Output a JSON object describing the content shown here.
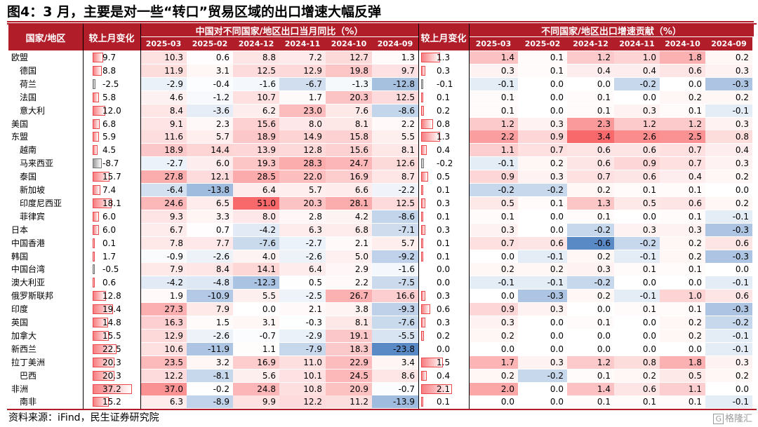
{
  "title": "图4：3 月，主要是对一些“转口”贸易区域的出口增速大幅反弹",
  "source": "资料来源：iFind，民生证券研究院",
  "watermark": "格隆汇",
  "headers": {
    "region": "国家/地区",
    "mom_left": "较上月变化",
    "mom_right": "较上月变化",
    "yoy_group": "中国对不同国家/地区出口当月同比（%）",
    "contrib_group": "不同国家/地区出口增速贡献（%）",
    "months": [
      "2025-03",
      "2025-02",
      "2024-12",
      "2024-11",
      "2024-10",
      "2024-09"
    ]
  },
  "colors": {
    "accent": "#b11e2a",
    "positive": "#f8696b",
    "negative": "#5a8ac6"
  },
  "rows": [
    {
      "name": "欧盟",
      "indent": false,
      "mom": 9.7,
      "yoy": [
        10.3,
        0.6,
        8.8,
        7.2,
        12.7,
        1.3
      ],
      "mom2": 1.3,
      "contrib": [
        1.4,
        0.1,
        1.2,
        1.0,
        1.8,
        0.2
      ]
    },
    {
      "name": "德国",
      "indent": true,
      "mom": 8.8,
      "yoy": [
        11.9,
        3.1,
        12.5,
        12.9,
        19.8,
        9.7
      ],
      "mom2": 0.3,
      "contrib": [
        0.3,
        0.1,
        0.4,
        0.4,
        0.6,
        0.3
      ]
    },
    {
      "name": "荷兰",
      "indent": true,
      "mom": -2.5,
      "yoy": [
        -2.9,
        -0.4,
        -1.6,
        -6.7,
        -1.3,
        -12.8
      ],
      "mom2": -0.1,
      "contrib": [
        -0.1,
        0.0,
        0.0,
        -0.2,
        0.0,
        -0.3
      ]
    },
    {
      "name": "法国",
      "indent": true,
      "mom": 5.8,
      "yoy": [
        4.6,
        -1.2,
        10.7,
        1.7,
        20.3,
        12.5
      ],
      "mom2": 0.1,
      "contrib": [
        0.1,
        0.0,
        0.1,
        0.0,
        0.2,
        0.2
      ]
    },
    {
      "name": "意大利",
      "indent": true,
      "mom": 12.0,
      "yoy": [
        8.4,
        -3.6,
        6.2,
        23.0,
        7.6,
        -8.6
      ],
      "mom2": 0.2,
      "contrib": [
        0.1,
        0.0,
        0.1,
        0.3,
        0.1,
        -0.1
      ]
    },
    {
      "name": "美国",
      "indent": false,
      "mom": 6.8,
      "yoy": [
        9.1,
        2.3,
        15.6,
        8.0,
        8.1,
        2.2
      ],
      "mom2": 0.8,
      "contrib": [
        1.2,
        0.3,
        2.3,
        1.2,
        1.2,
        0.3
      ]
    },
    {
      "name": "东盟",
      "indent": false,
      "mom": 5.9,
      "yoy": [
        11.6,
        5.7,
        18.9,
        14.9,
        15.8,
        5.5
      ],
      "mom2": 1.3,
      "contrib": [
        2.2,
        0.9,
        3.4,
        2.6,
        2.5,
        0.8
      ]
    },
    {
      "name": "越南",
      "indent": true,
      "mom": 4.5,
      "yoy": [
        18.9,
        14.4,
        13.9,
        12.8,
        15.6,
        8.1
      ],
      "mom2": 0.4,
      "contrib": [
        1.1,
        0.7,
        0.6,
        0.6,
        0.7,
        0.4
      ]
    },
    {
      "name": "马来西亚",
      "indent": true,
      "mom": -8.7,
      "yoy": [
        -2.7,
        6.0,
        19.3,
        28.3,
        24.7,
        12.6
      ],
      "mom2": -0.2,
      "contrib": [
        -0.1,
        0.2,
        0.6,
        0.9,
        0.7,
        0.3
      ]
    },
    {
      "name": "泰国",
      "indent": true,
      "mom": 15.7,
      "yoy": [
        27.8,
        12.1,
        28.5,
        22.0,
        16.9,
        8.7
      ],
      "mom2": 0.5,
      "contrib": [
        0.9,
        0.3,
        0.7,
        0.6,
        0.4,
        0.2
      ]
    },
    {
      "name": "新加坡",
      "indent": true,
      "mom": 7.4,
      "yoy": [
        -6.4,
        -13.8,
        6.4,
        5.7,
        6.6,
        -2.2
      ],
      "mom2": 0.1,
      "contrib": [
        -0.2,
        -0.2,
        0.2,
        0.1,
        0.1,
        0.0
      ]
    },
    {
      "name": "印度尼西亚",
      "indent": true,
      "mom": 18.1,
      "yoy": [
        24.6,
        6.5,
        51.0,
        20.3,
        28.1,
        12.5
      ],
      "mom2": 0.3,
      "contrib": [
        0.5,
        0.1,
        1.3,
        0.5,
        0.6,
        0.2
      ]
    },
    {
      "name": "菲律宾",
      "indent": true,
      "mom": 6.0,
      "yoy": [
        9.3,
        3.3,
        8.0,
        2.8,
        4.2,
        -8.6
      ],
      "mom2": 0.1,
      "contrib": [
        0.1,
        0.0,
        0.1,
        0.0,
        0.1,
        -0.1
      ]
    },
    {
      "name": "日本",
      "indent": false,
      "mom": 6.0,
      "yoy": [
        6.7,
        0.7,
        -4.2,
        6.3,
        6.8,
        -7.1
      ],
      "mom2": 0.3,
      "contrib": [
        0.3,
        0.0,
        -0.2,
        0.3,
        0.3,
        -0.3
      ]
    },
    {
      "name": "中国香港",
      "indent": false,
      "mom": 0.1,
      "yoy": [
        7.8,
        7.7,
        -7.6,
        -2.7,
        2.1,
        5.7
      ],
      "mom2": 0.1,
      "contrib": [
        0.7,
        0.6,
        -0.6,
        -0.2,
        0.2,
        0.6
      ]
    },
    {
      "name": "韩国",
      "indent": false,
      "mom": 1.7,
      "yoy": [
        -0.9,
        -2.6,
        4.0,
        -2.6,
        5.0,
        -9.2
      ],
      "mom2": 0.1,
      "contrib": [
        0.0,
        -0.1,
        0.2,
        -0.1,
        0.2,
        -0.3
      ]
    },
    {
      "name": "中国台湾",
      "indent": false,
      "mom": -0.5,
      "yoy": [
        7.9,
        8.4,
        14.1,
        6.4,
        2.9,
        -1.6
      ],
      "mom2": 0.0,
      "contrib": [
        0.2,
        0.2,
        0.3,
        0.1,
        0.1,
        0.0
      ]
    },
    {
      "name": "澳大利亚",
      "indent": false,
      "mom": 0.6,
      "yoy": [
        -4.2,
        -4.8,
        -12.3,
        0.5,
        2.2,
        -7.5
      ],
      "mom2": 0.0,
      "contrib": [
        -0.1,
        -0.1,
        -0.2,
        0.0,
        0.0,
        -0.1
      ]
    },
    {
      "name": "俄罗斯联邦",
      "indent": false,
      "mom": 12.8,
      "yoy": [
        1.9,
        -10.9,
        5.5,
        -2.5,
        26.7,
        16.6
      ],
      "mom2": 0.3,
      "contrib": [
        0.0,
        -0.3,
        0.2,
        -0.1,
        1.0,
        0.6
      ]
    },
    {
      "name": "印度",
      "indent": false,
      "mom": 19.4,
      "yoy": [
        27.3,
        7.9,
        0.0,
        2.1,
        3.8,
        -9.3
      ],
      "mom2": 0.6,
      "contrib": [
        0.9,
        0.3,
        0.0,
        0.1,
        0.1,
        -0.3
      ]
    },
    {
      "name": "英国",
      "indent": false,
      "mom": 14.8,
      "yoy": [
        16.3,
        1.5,
        3.1,
        -0.3,
        8.1,
        -7.6
      ],
      "mom2": 0.3,
      "contrib": [
        0.3,
        0.0,
        0.1,
        0.0,
        0.2,
        -0.2
      ]
    },
    {
      "name": "加拿大",
      "indent": false,
      "mom": 15.5,
      "yoy": [
        12.9,
        -2.6,
        -0.7,
        -2.9,
        19.1,
        -5.5
      ],
      "mom2": 0.2,
      "contrib": [
        0.2,
        0.0,
        0.0,
        0.0,
        0.2,
        -0.1
      ]
    },
    {
      "name": "新西兰",
      "indent": false,
      "mom": 22.5,
      "yoy": [
        10.6,
        -11.9,
        1.1,
        -7.9,
        18.3,
        -23.8
      ],
      "mom2": 0.0,
      "contrib": [
        0.0,
        0.0,
        0.0,
        0.0,
        0.0,
        -0.1
      ]
    },
    {
      "name": "拉丁美洲",
      "indent": false,
      "mom": 20.3,
      "yoy": [
        23.5,
        3.2,
        16.9,
        11.0,
        22.9,
        3.4
      ],
      "mom2": 1.5,
      "contrib": [
        1.7,
        0.3,
        1.2,
        0.8,
        1.8,
        0.3
      ]
    },
    {
      "name": "巴西",
      "indent": true,
      "mom": 20.3,
      "yoy": [
        12.2,
        -8.1,
        5.6,
        10.1,
        24.5,
        8.6
      ],
      "mom2": 0.4,
      "contrib": [
        0.2,
        -0.2,
        0.1,
        0.2,
        0.5,
        0.2
      ]
    },
    {
      "name": "非洲",
      "indent": false,
      "mom": 37.2,
      "yoy": [
        37.0,
        -0.2,
        24.8,
        10.8,
        20.9,
        -0.7
      ],
      "mom2": 2.1,
      "contrib": [
        2.0,
        0.0,
        1.4,
        0.6,
        1.1,
        0.0
      ]
    },
    {
      "name": "南非",
      "indent": true,
      "mom": 15.2,
      "yoy": [
        6.3,
        -8.9,
        9.9,
        12.2,
        11.2,
        -13.9
      ],
      "mom2": 0.1,
      "contrib": [
        0.0,
        0.0,
        0.1,
        0.1,
        0.1,
        -0.1
      ]
    }
  ]
}
